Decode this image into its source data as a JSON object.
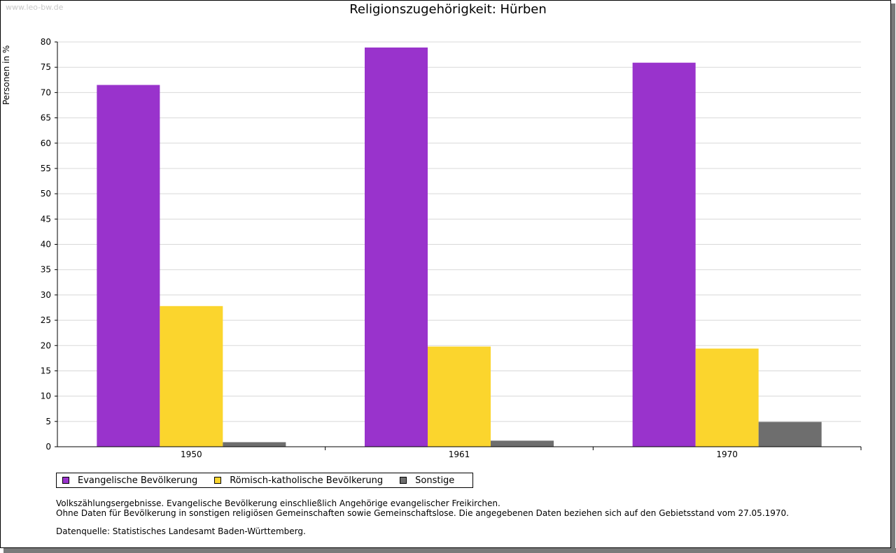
{
  "watermark": "www.leo-bw.de",
  "chart_data": {
    "type": "bar",
    "title": "Religionszugehörigkeit: Hürben",
    "ylabel": "Personen in %",
    "xlabel": "",
    "categories": [
      "1950",
      "1961",
      "1970"
    ],
    "ylim": [
      0,
      80
    ],
    "yticks": [
      0,
      5,
      10,
      15,
      20,
      25,
      30,
      35,
      40,
      45,
      50,
      55,
      60,
      65,
      70,
      75,
      80
    ],
    "grid": true,
    "series": [
      {
        "name": "Evangelische Bevölkerung",
        "color": "#9933cc",
        "values": [
          71.5,
          78.9,
          75.9
        ]
      },
      {
        "name": "Römisch-katholische Bevölkerung",
        "color": "#fbd52d",
        "values": [
          27.8,
          19.8,
          19.4
        ]
      },
      {
        "name": "Sonstige",
        "color": "#6e6e6e",
        "values": [
          0.9,
          1.2,
          4.9
        ]
      }
    ],
    "legend_position": "bottom-left"
  },
  "notes": {
    "line1": "Volkszählungsergebnisse. Evangelische Bevölkerung einschließlich Angehörige evangelischer Freikirchen.",
    "line2": "Ohne Daten für Bevölkerung in sonstigen religiösen Gemeinschaften sowie Gemeinschaftslose. Die angegebenen Daten beziehen sich auf den Gebietsstand vom 27.05.1970.",
    "source": "Datenquelle: Statistisches Landesamt Baden-Württemberg."
  }
}
